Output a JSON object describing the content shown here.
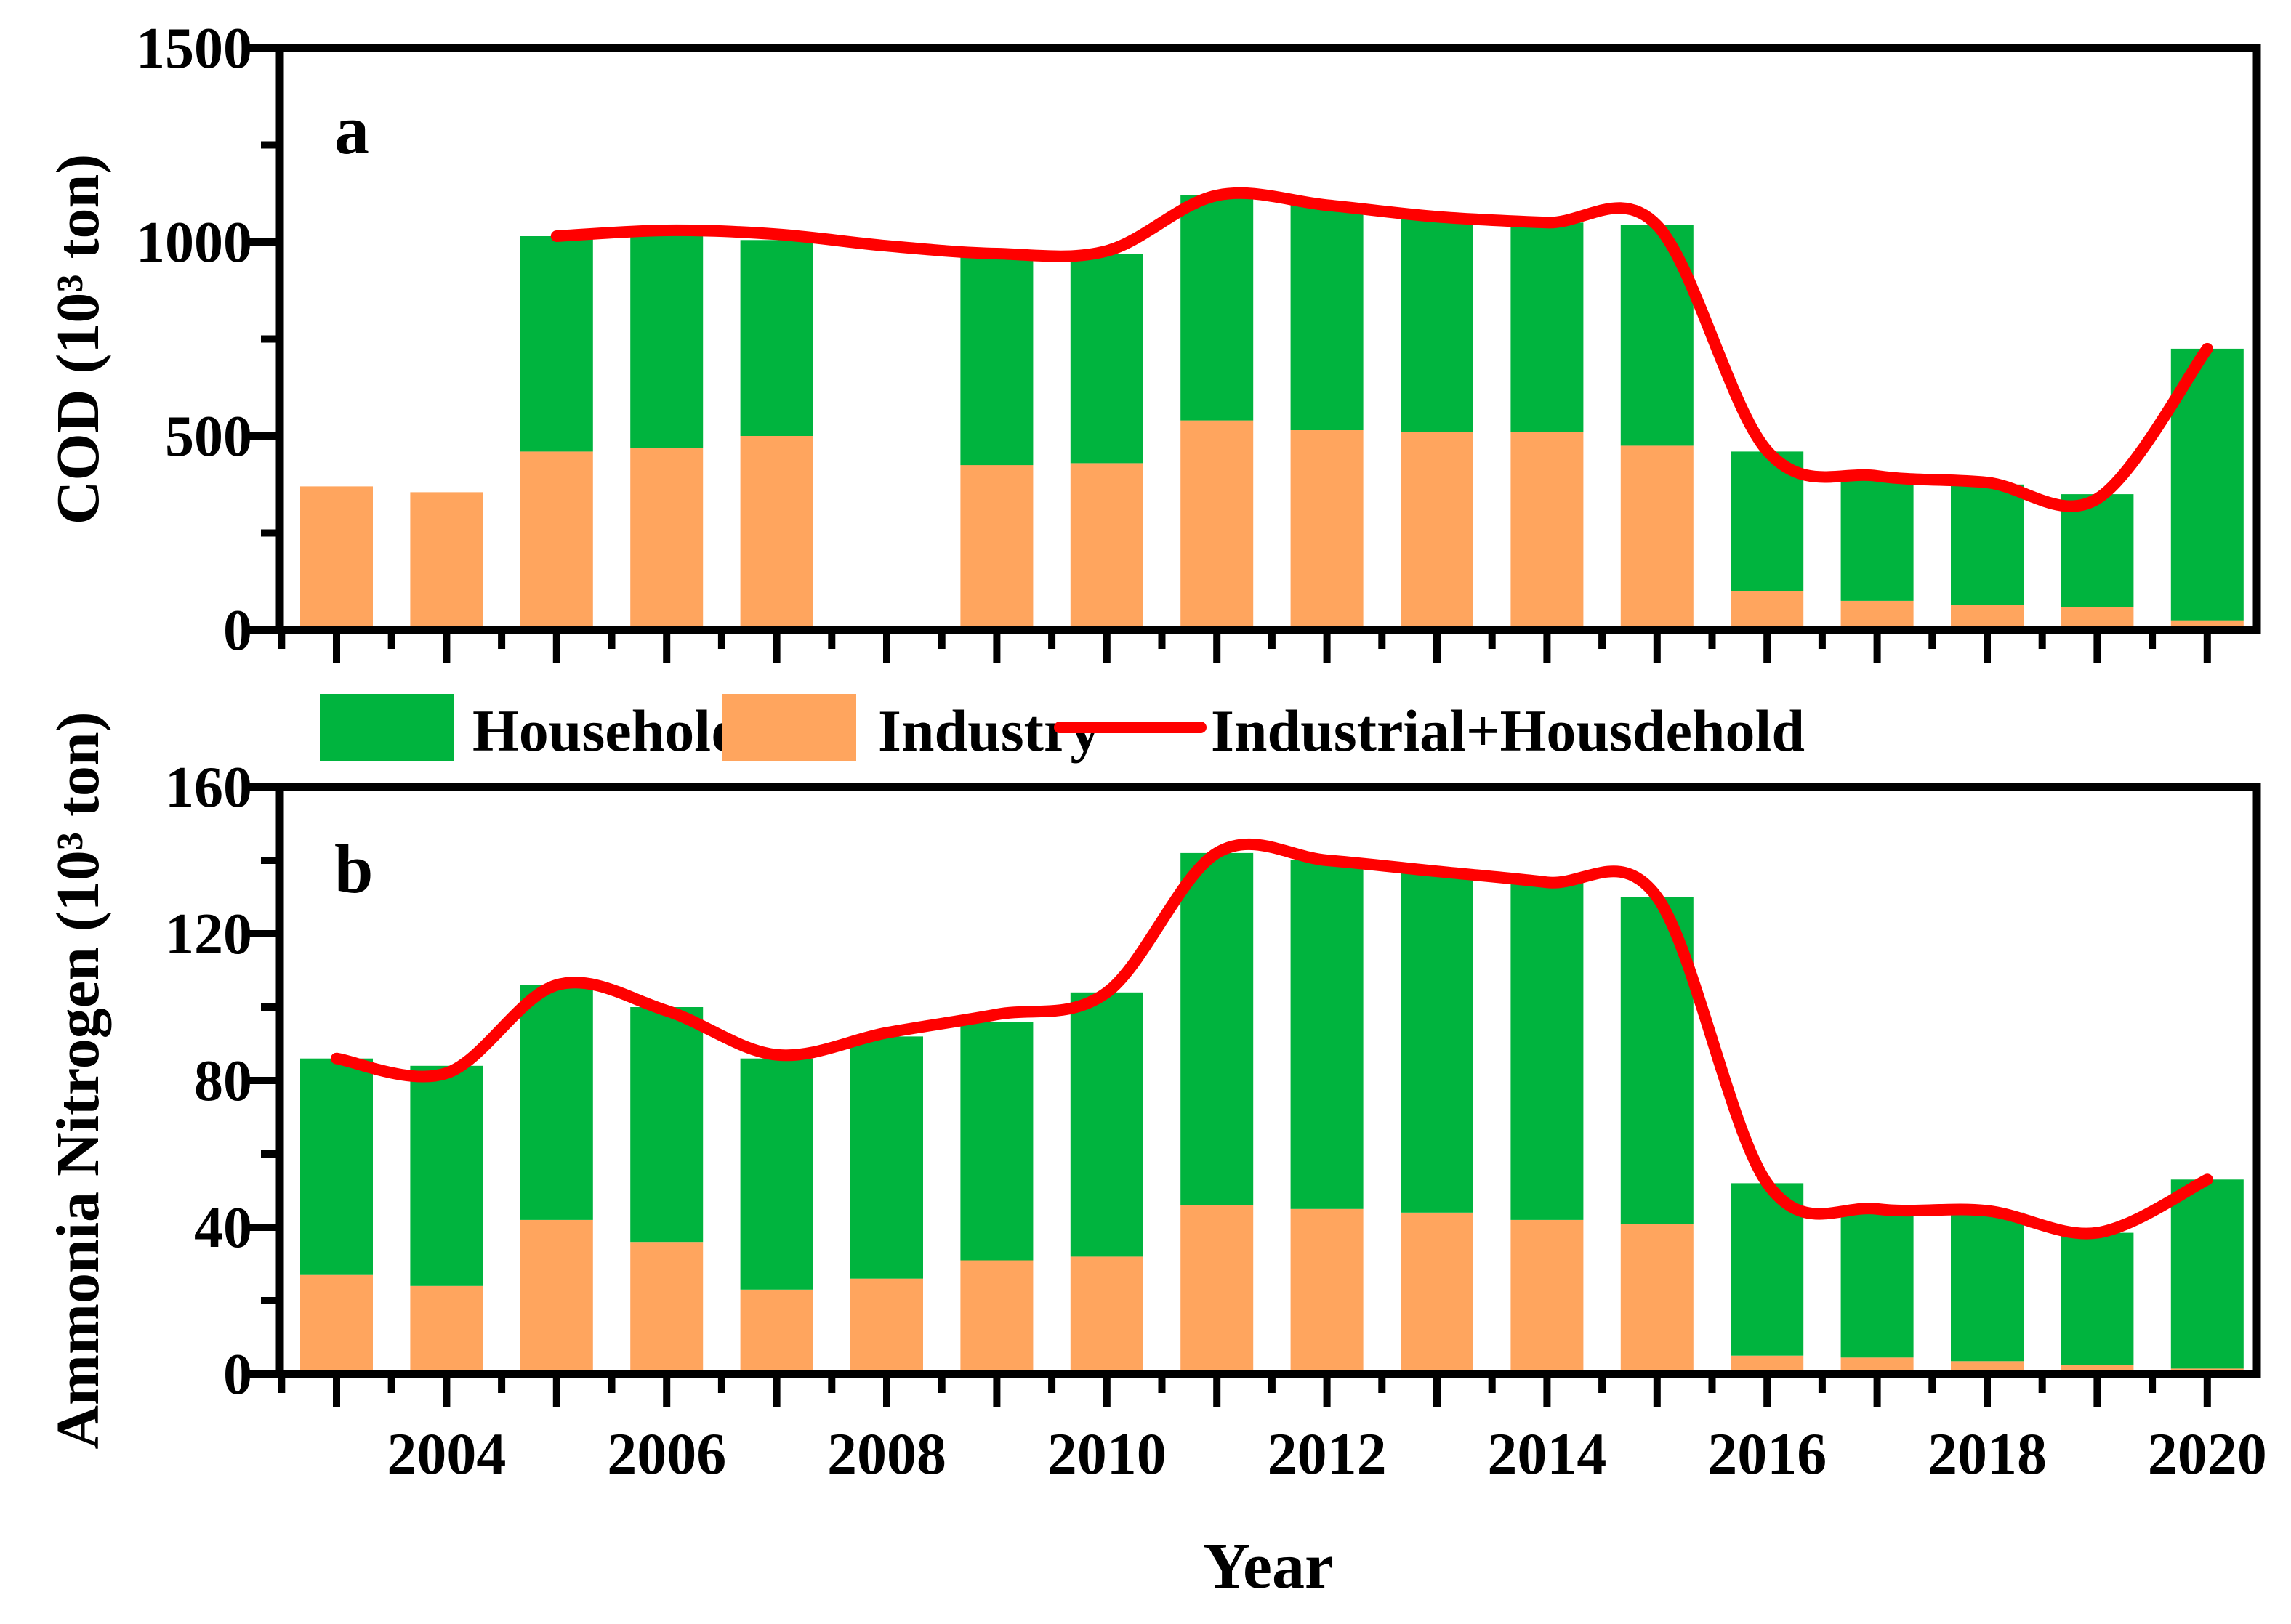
{
  "colors": {
    "household": "#00B43E",
    "industry": "#FFA55E",
    "line": "#FF0000",
    "axis": "#000000",
    "background": "#FFFFFF"
  },
  "legend": {
    "items": [
      {
        "label": "Household",
        "type": "swatch",
        "color_key": "household"
      },
      {
        "label": "Industry",
        "type": "swatch",
        "color_key": "industry"
      },
      {
        "label": "Industrial+Housdehold",
        "type": "line",
        "color_key": "line"
      }
    ]
  },
  "x_axis": {
    "title": "Year",
    "tick_label_years": [
      2004,
      2006,
      2008,
      2010,
      2012,
      2014,
      2016,
      2018,
      2020
    ]
  },
  "chart_data": [
    {
      "type": "bar",
      "panel_label": "a",
      "ylabel": "COD (10³ ton)",
      "ylim": [
        0,
        1500
      ],
      "yticks": [
        0,
        500,
        1000,
        1500
      ],
      "y_minor_step": 250,
      "categories": [
        2003,
        2004,
        2005,
        2006,
        2007,
        2008,
        2009,
        2010,
        2011,
        2012,
        2013,
        2014,
        2015,
        2016,
        2017,
        2018,
        2019,
        2020
      ],
      "series": [
        {
          "name": "Industry",
          "values": [
            370,
            355,
            460,
            470,
            500,
            null,
            425,
            430,
            540,
            515,
            510,
            510,
            475,
            100,
            75,
            65,
            60,
            25
          ]
        },
        {
          "name": "Household",
          "values": [
            0,
            0,
            555,
            555,
            505,
            null,
            540,
            540,
            580,
            580,
            555,
            540,
            570,
            360,
            315,
            310,
            290,
            700
          ]
        }
      ],
      "line_series": {
        "name": "Industrial+Housdehold",
        "x": [
          2005,
          2006,
          2007,
          2008,
          2009,
          2010,
          2011,
          2012,
          2013,
          2014,
          2015,
          2016,
          2017,
          2018,
          2019,
          2020
        ],
        "values": [
          1015,
          1030,
          1020,
          990,
          970,
          977,
          1120,
          1095,
          1065,
          1050,
          1043,
          462,
          397,
          380,
          338,
          725
        ]
      },
      "legend_note": "grid off, legend between panels"
    },
    {
      "type": "bar",
      "panel_label": "b",
      "ylabel": "Ammonia Nitrogen (10³ ton)",
      "ylim": [
        0,
        160
      ],
      "yticks": [
        0,
        40,
        80,
        120,
        160
      ],
      "y_minor_step": 20,
      "categories": [
        2003,
        2004,
        2005,
        2006,
        2007,
        2008,
        2009,
        2010,
        2011,
        2012,
        2013,
        2014,
        2015,
        2016,
        2017,
        2018,
        2019,
        2020
      ],
      "series": [
        {
          "name": "Industry",
          "values": [
            27,
            24,
            42,
            36,
            23,
            26,
            31,
            32,
            46,
            45,
            44,
            42,
            41,
            5,
            4.5,
            3.5,
            2.5,
            1.5
          ]
        },
        {
          "name": "Household",
          "values": [
            59,
            60,
            64,
            64,
            63,
            66,
            65,
            72,
            96,
            95,
            93,
            92,
            89,
            47,
            40.5,
            40.5,
            36,
            51.5
          ]
        }
      ],
      "line_series": {
        "name": "Industrial+Housdehold",
        "x": [
          2003,
          2004,
          2005,
          2006,
          2007,
          2008,
          2009,
          2010,
          2011,
          2012,
          2013,
          2014,
          2015,
          2016,
          2017,
          2018,
          2019,
          2020
        ],
        "values": [
          86,
          82,
          106,
          99,
          87,
          93,
          98,
          104,
          142,
          140,
          137,
          134,
          130,
          52,
          45,
          44.5,
          38.5,
          53
        ]
      },
      "legend_note": "grid off"
    }
  ]
}
